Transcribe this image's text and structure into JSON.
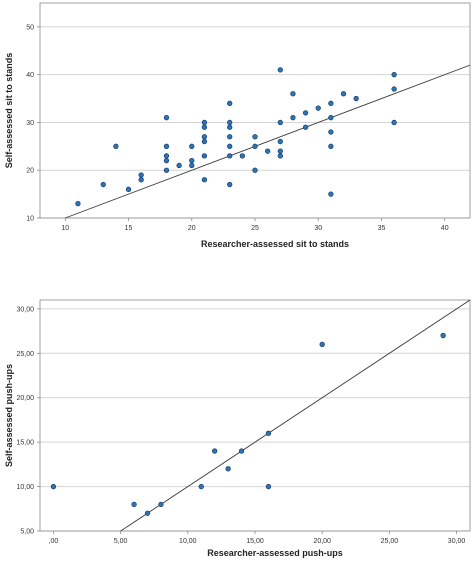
{
  "chart_data": [
    {
      "type": "scatter",
      "xlabel": "Researcher-assessed sit to stands",
      "ylabel": "Self-assessed sit to stands",
      "xlim": [
        8,
        42
      ],
      "ylim": [
        10,
        55
      ],
      "x_ticks": [
        "10",
        "15",
        "20",
        "25",
        "30",
        "35",
        "40"
      ],
      "y_ticks": [
        "10",
        "20",
        "30",
        "40",
        "50"
      ],
      "grid": "horizontal",
      "reference_line": "identity (y = x)",
      "marker_color": "#2f73b6",
      "points": [
        [
          11,
          13
        ],
        [
          13,
          17
        ],
        [
          14,
          25
        ],
        [
          15,
          16
        ],
        [
          16,
          18
        ],
        [
          16,
          19
        ],
        [
          18,
          20
        ],
        [
          18,
          22
        ],
        [
          18,
          23
        ],
        [
          18,
          25
        ],
        [
          18,
          31
        ],
        [
          19,
          21
        ],
        [
          20,
          21
        ],
        [
          20,
          22
        ],
        [
          20,
          25
        ],
        [
          21,
          18
        ],
        [
          21,
          23
        ],
        [
          21,
          26
        ],
        [
          21,
          27
        ],
        [
          21,
          29
        ],
        [
          21,
          30
        ],
        [
          23,
          17
        ],
        [
          23,
          23
        ],
        [
          23,
          25
        ],
        [
          23,
          27
        ],
        [
          23,
          29
        ],
        [
          23,
          30
        ],
        [
          23,
          34
        ],
        [
          24,
          23
        ],
        [
          25,
          20
        ],
        [
          25,
          25
        ],
        [
          25,
          27
        ],
        [
          26,
          24
        ],
        [
          27,
          23
        ],
        [
          27,
          24
        ],
        [
          27,
          26
        ],
        [
          27,
          30
        ],
        [
          27,
          41
        ],
        [
          28,
          31
        ],
        [
          28,
          36
        ],
        [
          29,
          29
        ],
        [
          29,
          32
        ],
        [
          30,
          33
        ],
        [
          31,
          15
        ],
        [
          31,
          25
        ],
        [
          31,
          28
        ],
        [
          31,
          31
        ],
        [
          31,
          34
        ],
        [
          32,
          36
        ],
        [
          33,
          35
        ],
        [
          36,
          30
        ],
        [
          36,
          37
        ],
        [
          36,
          40
        ]
      ]
    },
    {
      "type": "scatter",
      "xlabel": "Researcher-assessed push-ups",
      "ylabel": "Self-assessed push-ups",
      "xlim": [
        -1,
        31
      ],
      "ylim": [
        5,
        31
      ],
      "x_ticks": [
        ",00",
        "5,00",
        "10,00",
        "15,00",
        "20,00",
        "25,00",
        "30,00"
      ],
      "y_ticks": [
        "5,00",
        "10,00",
        "15,00",
        "20,00",
        "25,00",
        "30,00"
      ],
      "grid": "horizontal",
      "reference_line": "identity (y = x)",
      "marker_color": "#2f73b6",
      "points": [
        [
          0,
          10
        ],
        [
          6,
          8
        ],
        [
          7,
          7
        ],
        [
          8,
          8
        ],
        [
          11,
          10
        ],
        [
          12,
          14
        ],
        [
          13,
          12
        ],
        [
          14,
          14
        ],
        [
          16,
          10
        ],
        [
          16,
          16
        ],
        [
          20,
          26
        ],
        [
          29,
          27
        ]
      ]
    }
  ]
}
